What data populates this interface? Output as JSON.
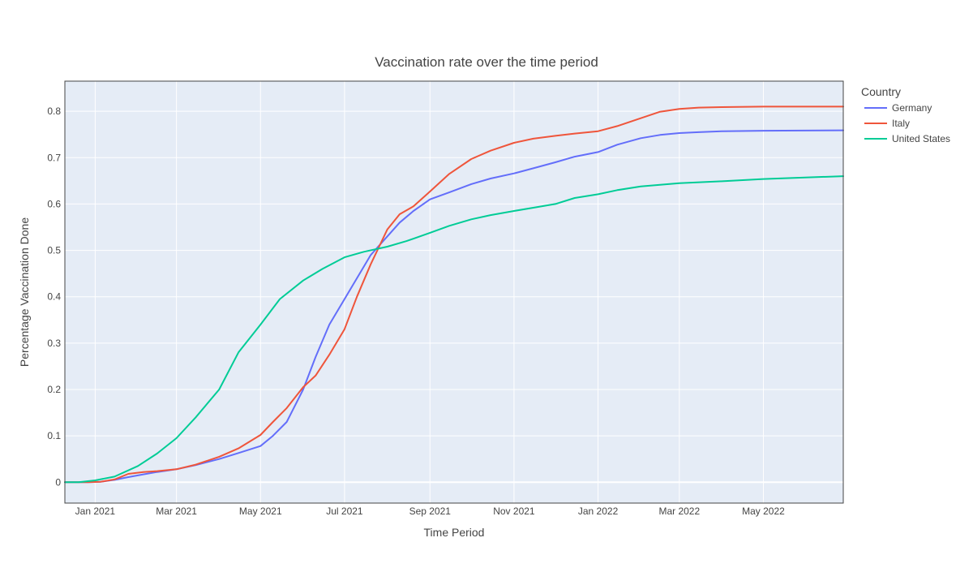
{
  "chart_data": {
    "type": "line",
    "title": "Vaccination rate over the time period",
    "xlabel": "Time Period",
    "ylabel": "Percentage Vaccination Done",
    "xlim": [
      "2020-12-10",
      "2022-06-28"
    ],
    "ylim": [
      -0.045,
      0.865
    ],
    "x_ticks": [
      {
        "date": "2021-01-01",
        "label": "Jan 2021"
      },
      {
        "date": "2021-03-01",
        "label": "Mar 2021"
      },
      {
        "date": "2021-05-01",
        "label": "May 2021"
      },
      {
        "date": "2021-07-01",
        "label": "Jul 2021"
      },
      {
        "date": "2021-09-01",
        "label": "Sep 2021"
      },
      {
        "date": "2021-11-01",
        "label": "Nov 2021"
      },
      {
        "date": "2022-01-01",
        "label": "Jan 2022"
      },
      {
        "date": "2022-03-01",
        "label": "Mar 2022"
      },
      {
        "date": "2022-05-01",
        "label": "May 2022"
      }
    ],
    "y_ticks": [
      {
        "value": 0,
        "label": "0"
      },
      {
        "value": 0.1,
        "label": "0.1"
      },
      {
        "value": 0.2,
        "label": "0.2"
      },
      {
        "value": 0.3,
        "label": "0.3"
      },
      {
        "value": 0.4,
        "label": "0.4"
      },
      {
        "value": 0.5,
        "label": "0.5"
      },
      {
        "value": 0.6,
        "label": "0.6"
      },
      {
        "value": 0.7,
        "label": "0.7"
      },
      {
        "value": 0.8,
        "label": "0.8"
      }
    ],
    "grid": true,
    "legend": {
      "title": "Country",
      "position": "top-right outside"
    },
    "series": [
      {
        "name": "Germany",
        "color": "#636efa",
        "points": [
          [
            "2020-12-10",
            0.0
          ],
          [
            "2020-12-27",
            0.0
          ],
          [
            "2021-01-05",
            0.001
          ],
          [
            "2021-01-15",
            0.005
          ],
          [
            "2021-01-25",
            0.011
          ],
          [
            "2021-02-05",
            0.017
          ],
          [
            "2021-02-15",
            0.022
          ],
          [
            "2021-03-01",
            0.028
          ],
          [
            "2021-03-15",
            0.037
          ],
          [
            "2021-04-01",
            0.05
          ],
          [
            "2021-04-15",
            0.063
          ],
          [
            "2021-05-01",
            0.078
          ],
          [
            "2021-05-10",
            0.1
          ],
          [
            "2021-05-20",
            0.13
          ],
          [
            "2021-06-01",
            0.2
          ],
          [
            "2021-06-10",
            0.27
          ],
          [
            "2021-06-20",
            0.34
          ],
          [
            "2021-07-01",
            0.395
          ],
          [
            "2021-07-10",
            0.44
          ],
          [
            "2021-07-20",
            0.49
          ],
          [
            "2021-08-01",
            0.53
          ],
          [
            "2021-08-10",
            0.56
          ],
          [
            "2021-08-20",
            0.585
          ],
          [
            "2021-09-01",
            0.61
          ],
          [
            "2021-09-15",
            0.625
          ],
          [
            "2021-10-01",
            0.643
          ],
          [
            "2021-10-15",
            0.655
          ],
          [
            "2021-11-01",
            0.666
          ],
          [
            "2021-11-15",
            0.677
          ],
          [
            "2021-12-01",
            0.69
          ],
          [
            "2021-12-15",
            0.702
          ],
          [
            "2022-01-01",
            0.712
          ],
          [
            "2022-01-15",
            0.728
          ],
          [
            "2022-02-01",
            0.742
          ],
          [
            "2022-02-15",
            0.749
          ],
          [
            "2022-03-01",
            0.753
          ],
          [
            "2022-03-15",
            0.755
          ],
          [
            "2022-04-01",
            0.757
          ],
          [
            "2022-05-01",
            0.758
          ],
          [
            "2022-06-28",
            0.759
          ]
        ]
      },
      {
        "name": "Italy",
        "color": "#ef553b",
        "points": [
          [
            "2020-12-10",
            0.0
          ],
          [
            "2020-12-27",
            0.0
          ],
          [
            "2021-01-05",
            0.001
          ],
          [
            "2021-01-15",
            0.006
          ],
          [
            "2021-01-25",
            0.018
          ],
          [
            "2021-02-05",
            0.022
          ],
          [
            "2021-02-15",
            0.024
          ],
          [
            "2021-03-01",
            0.028
          ],
          [
            "2021-03-15",
            0.038
          ],
          [
            "2021-04-01",
            0.055
          ],
          [
            "2021-04-15",
            0.073
          ],
          [
            "2021-05-01",
            0.102
          ],
          [
            "2021-05-10",
            0.13
          ],
          [
            "2021-05-20",
            0.16
          ],
          [
            "2021-06-01",
            0.205
          ],
          [
            "2021-06-10",
            0.23
          ],
          [
            "2021-06-20",
            0.275
          ],
          [
            "2021-07-01",
            0.33
          ],
          [
            "2021-07-10",
            0.4
          ],
          [
            "2021-07-20",
            0.47
          ],
          [
            "2021-08-01",
            0.545
          ],
          [
            "2021-08-10",
            0.578
          ],
          [
            "2021-08-20",
            0.595
          ],
          [
            "2021-09-01",
            0.627
          ],
          [
            "2021-09-15",
            0.665
          ],
          [
            "2021-10-01",
            0.697
          ],
          [
            "2021-10-15",
            0.715
          ],
          [
            "2021-11-01",
            0.732
          ],
          [
            "2021-11-15",
            0.741
          ],
          [
            "2021-12-01",
            0.747
          ],
          [
            "2021-12-15",
            0.752
          ],
          [
            "2022-01-01",
            0.757
          ],
          [
            "2022-01-15",
            0.768
          ],
          [
            "2022-02-01",
            0.785
          ],
          [
            "2022-02-15",
            0.799
          ],
          [
            "2022-03-01",
            0.805
          ],
          [
            "2022-03-15",
            0.808
          ],
          [
            "2022-04-01",
            0.809
          ],
          [
            "2022-05-01",
            0.81
          ],
          [
            "2022-06-28",
            0.81
          ]
        ]
      },
      {
        "name": "United States",
        "color": "#00cc96",
        "points": [
          [
            "2020-12-10",
            0.0
          ],
          [
            "2020-12-20",
            0.0
          ],
          [
            "2021-01-01",
            0.004
          ],
          [
            "2021-01-15",
            0.012
          ],
          [
            "2021-02-01",
            0.035
          ],
          [
            "2021-02-15",
            0.062
          ],
          [
            "2021-03-01",
            0.095
          ],
          [
            "2021-03-15",
            0.14
          ],
          [
            "2021-04-01",
            0.2
          ],
          [
            "2021-04-15",
            0.28
          ],
          [
            "2021-05-01",
            0.34
          ],
          [
            "2021-05-15",
            0.395
          ],
          [
            "2021-06-01",
            0.435
          ],
          [
            "2021-06-15",
            0.46
          ],
          [
            "2021-07-01",
            0.485
          ],
          [
            "2021-07-15",
            0.497
          ],
          [
            "2021-08-01",
            0.508
          ],
          [
            "2021-08-15",
            0.52
          ],
          [
            "2021-09-01",
            0.538
          ],
          [
            "2021-09-15",
            0.553
          ],
          [
            "2021-10-01",
            0.567
          ],
          [
            "2021-10-15",
            0.576
          ],
          [
            "2021-11-01",
            0.585
          ],
          [
            "2021-11-15",
            0.592
          ],
          [
            "2021-12-01",
            0.6
          ],
          [
            "2021-12-15",
            0.613
          ],
          [
            "2022-01-01",
            0.621
          ],
          [
            "2022-01-15",
            0.63
          ],
          [
            "2022-02-01",
            0.638
          ],
          [
            "2022-03-01",
            0.645
          ],
          [
            "2022-04-01",
            0.649
          ],
          [
            "2022-05-01",
            0.654
          ],
          [
            "2022-06-28",
            0.66
          ]
        ]
      }
    ]
  }
}
